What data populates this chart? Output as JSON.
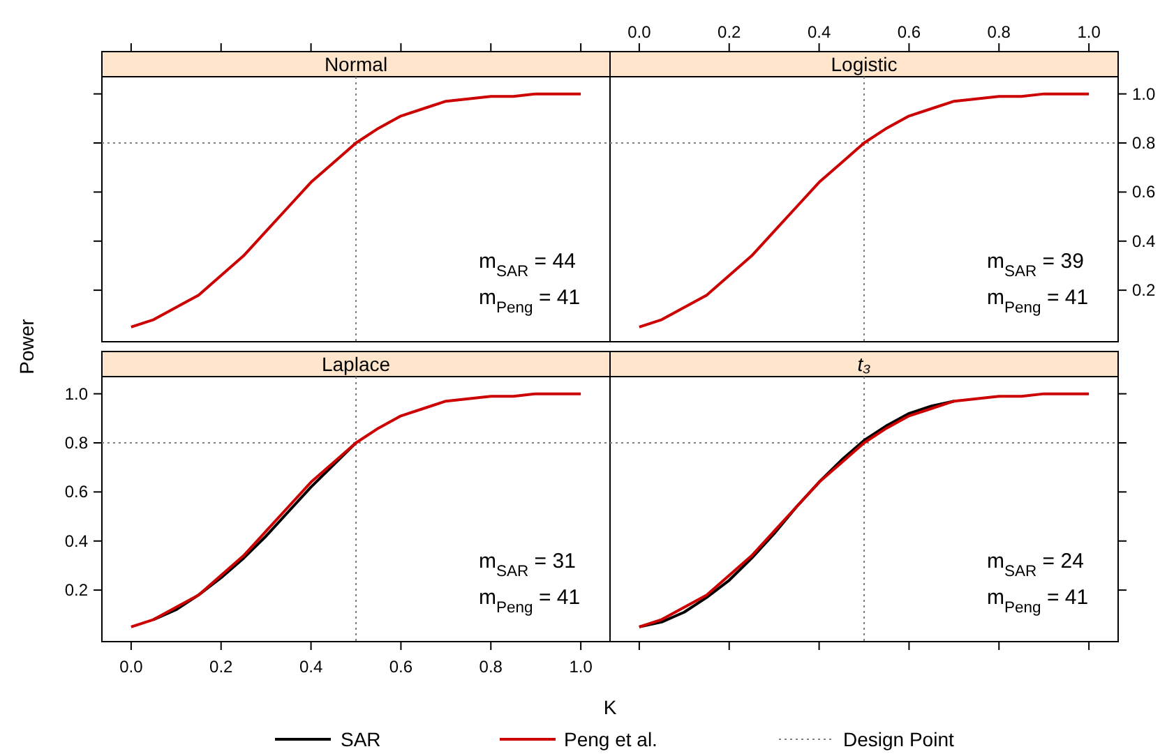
{
  "chart_data": [
    {
      "type": "line",
      "title": "Normal",
      "x": [
        0,
        0.05,
        0.1,
        0.15,
        0.2,
        0.25,
        0.3,
        0.35,
        0.4,
        0.45,
        0.5,
        0.55,
        0.6,
        0.65,
        0.7,
        0.75,
        0.8,
        0.85,
        0.9,
        0.95,
        1.0
      ],
      "xlim": [
        -0.065,
        1.065
      ],
      "ylim": [
        -0.01,
        1.07
      ],
      "xticks": [
        0,
        0.2,
        0.4,
        0.6,
        0.8,
        1
      ],
      "yticks": [
        0.2,
        0.4,
        0.6,
        0.8,
        1
      ],
      "tick_labels": false,
      "series": [
        {
          "color": "#cc0000",
          "values": [
            0.05,
            0.08,
            0.13,
            0.18,
            0.26,
            0.34,
            0.44,
            0.54,
            0.64,
            0.72,
            0.8,
            0.86,
            0.91,
            0.94,
            0.97,
            0.98,
            0.99,
            0.99,
            1.0,
            1.0,
            1.0
          ]
        }
      ],
      "ref_lines": [
        {
          "axis": "x",
          "value": 0.5,
          "color": "#808080",
          "line_style": "dotted"
        },
        {
          "axis": "y",
          "value": 0.8,
          "color": "#808080",
          "line_style": "dotted"
        }
      ],
      "annotations": [
        "m$_{SAR}$ = 44",
        "m$_{Peng}$ = 41"
      ]
    },
    {
      "type": "line",
      "title": "Logistic",
      "x": [
        0,
        0.05,
        0.1,
        0.15,
        0.2,
        0.25,
        0.3,
        0.35,
        0.4,
        0.45,
        0.5,
        0.55,
        0.6,
        0.65,
        0.7,
        0.75,
        0.8,
        0.85,
        0.9,
        0.95,
        1.0
      ],
      "xlim": [
        -0.065,
        1.065
      ],
      "ylim": [
        -0.01,
        1.07
      ],
      "xticks": [
        {
          "value": 0,
          "label": "0.0"
        },
        {
          "value": 0.2,
          "label": "0.2"
        },
        {
          "value": 0.4,
          "label": "0.4"
        },
        {
          "value": 0.6,
          "label": "0.6"
        },
        {
          "value": 0.8,
          "label": "0.8"
        },
        {
          "value": 1,
          "label": "1.0"
        }
      ],
      "yticks": [
        0.2,
        0.4,
        0.6,
        0.8,
        {
          "value": 1,
          "label": "1.0"
        }
      ],
      "series": [
        {
          "color": "#cc0000",
          "values": [
            0.05,
            0.08,
            0.13,
            0.18,
            0.26,
            0.34,
            0.44,
            0.54,
            0.64,
            0.72,
            0.8,
            0.86,
            0.91,
            0.94,
            0.97,
            0.98,
            0.99,
            0.99,
            1.0,
            1.0,
            1.0
          ]
        }
      ],
      "ref_lines": [
        {
          "axis": "x",
          "value": 0.5,
          "color": "#808080",
          "line_style": "dotted"
        },
        {
          "axis": "y",
          "value": 0.8,
          "color": "#808080",
          "line_style": "dotted"
        }
      ],
      "annotations": [
        "m$_{SAR}$ = 39",
        "m$_{Peng}$ = 41"
      ]
    },
    {
      "type": "line",
      "title": "Laplace",
      "xlabel": "K",
      "ylabel": "Power",
      "legend": "bottom",
      "x": [
        0,
        0.05,
        0.1,
        0.15,
        0.2,
        0.25,
        0.3,
        0.35,
        0.4,
        0.45,
        0.5,
        0.55,
        0.6,
        0.65,
        0.7,
        0.75,
        0.8,
        0.85,
        0.9,
        0.95,
        1.0
      ],
      "xlim": [
        -0.065,
        1.065
      ],
      "ylim": [
        -0.01,
        1.07
      ],
      "xticks": [
        {
          "value": 0,
          "label": "0.0"
        },
        {
          "value": 0.2,
          "label": "0.2"
        },
        {
          "value": 0.4,
          "label": "0.4"
        },
        {
          "value": 0.6,
          "label": "0.6"
        },
        {
          "value": 0.8,
          "label": "0.8"
        },
        {
          "value": 1,
          "label": "1.0"
        }
      ],
      "yticks": [
        0.2,
        0.4,
        0.6,
        0.8,
        {
          "value": 1,
          "label": "1.0"
        }
      ],
      "series": [
        {
          "name": "SAR",
          "color": "#000000",
          "values": [
            null,
            0.08,
            0.12,
            0.18,
            0.25,
            0.33,
            0.42,
            0.52,
            0.62,
            0.71,
            0.8,
            null,
            null,
            null,
            null,
            null,
            null,
            null,
            null,
            null,
            null
          ]
        },
        {
          "name": "Peng et al.",
          "color": "#cc0000",
          "values": [
            0.05,
            0.08,
            0.13,
            0.18,
            0.26,
            0.34,
            0.44,
            0.54,
            0.64,
            0.72,
            0.8,
            0.86,
            0.91,
            0.94,
            0.97,
            0.98,
            0.99,
            0.99,
            1.0,
            1.0,
            1.0
          ]
        }
      ],
      "ref_lines": [
        {
          "axis": "x",
          "value": 0.5,
          "color": "#808080",
          "line_style": "dotted",
          "label": "Design Point"
        },
        {
          "axis": "y",
          "value": 0.8,
          "color": "#808080",
          "line_style": "dotted"
        }
      ],
      "annotations": [
        "m$_{SAR}$ = 31",
        "m$_{Peng}$ = 41"
      ]
    },
    {
      "type": "line",
      "title": "t₃",
      "x": [
        0,
        0.05,
        0.1,
        0.15,
        0.2,
        0.25,
        0.3,
        0.35,
        0.4,
        0.45,
        0.5,
        0.55,
        0.6,
        0.65,
        0.7,
        0.75,
        0.8,
        0.85,
        0.9,
        0.95,
        1.0
      ],
      "xlim": [
        -0.065,
        1.065
      ],
      "ylim": [
        -0.01,
        1.07
      ],
      "xticks": [
        0,
        0.2,
        0.4,
        0.6,
        0.8,
        1
      ],
      "yticks": [
        0.2,
        0.4,
        0.6,
        0.8,
        1
      ],
      "tick_labels": false,
      "series": [
        {
          "color": "#000000",
          "values": [
            0.05,
            0.07,
            0.11,
            0.17,
            0.24,
            0.33,
            0.43,
            0.54,
            0.64,
            0.73,
            0.81,
            0.87,
            0.92,
            0.95,
            0.97,
            null,
            null,
            null,
            null,
            null,
            null
          ]
        },
        {
          "color": "#cc0000",
          "values": [
            0.05,
            0.08,
            0.13,
            0.18,
            0.26,
            0.34,
            0.44,
            0.54,
            0.64,
            0.72,
            0.8,
            0.86,
            0.91,
            0.94,
            0.97,
            0.98,
            0.99,
            0.99,
            1.0,
            1.0,
            1.0
          ]
        }
      ],
      "ref_lines": [
        {
          "axis": "x",
          "value": 0.5,
          "color": "#808080",
          "line_style": "dotted"
        },
        {
          "axis": "y",
          "value": 0.8,
          "color": "#808080",
          "line_style": "dotted"
        }
      ],
      "annotations": [
        "m$_{SAR}$ = 24",
        "m$_{Peng}$ = 41"
      ]
    }
  ]
}
